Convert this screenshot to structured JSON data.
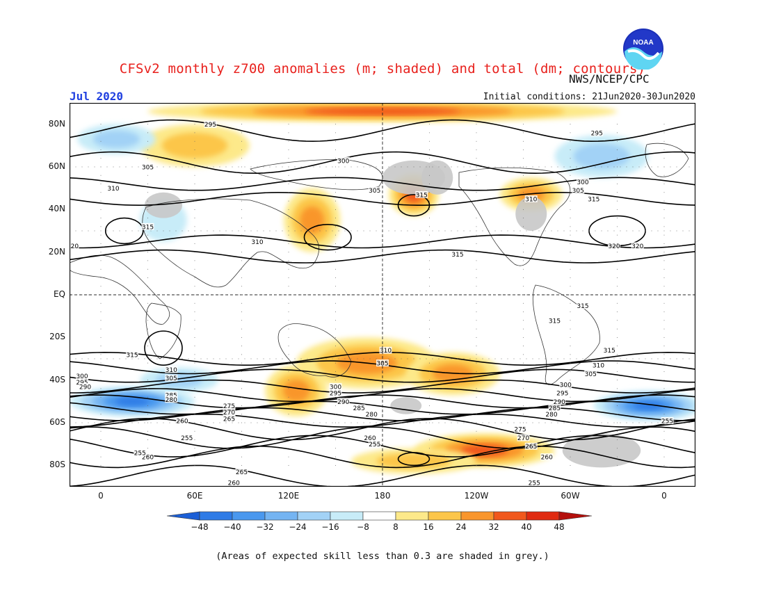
{
  "title": "CFSv2 monthly z700 anomalies (m; shaded) and total (dm; contours)",
  "agency": "NWS/NCEP/CPC",
  "logo": {
    "icon": "noaa-logo-icon",
    "text": "NOAA"
  },
  "valid_month": "Jul 2020",
  "initial_conditions": "Initial conditions: 21Jun2020-30Jun2020",
  "footer_note": "(Areas of expected skill less than 0.3 are shaded in grey.)",
  "map": {
    "lon_range": [
      -20,
      380
    ],
    "lat_range": [
      -90,
      90
    ],
    "lat_labels": [
      {
        "lat": 80,
        "text": "80N"
      },
      {
        "lat": 60,
        "text": "60N"
      },
      {
        "lat": 40,
        "text": "40N"
      },
      {
        "lat": 20,
        "text": "20N"
      },
      {
        "lat": 0,
        "text": "EQ"
      },
      {
        "lat": -20,
        "text": "20S"
      },
      {
        "lat": -40,
        "text": "40S"
      },
      {
        "lat": -60,
        "text": "60S"
      },
      {
        "lat": -80,
        "text": "80S"
      }
    ],
    "lon_labels": [
      {
        "lon": 0,
        "text": "0"
      },
      {
        "lon": 60,
        "text": "60E"
      },
      {
        "lon": 120,
        "text": "120E"
      },
      {
        "lon": 180,
        "text": "180"
      },
      {
        "lon": 240,
        "text": "120W"
      },
      {
        "lon": 300,
        "text": "60W"
      },
      {
        "lon": 360,
        "text": "0"
      }
    ],
    "reference_lines": {
      "equator_lat": 0,
      "dateline_lon": 180
    },
    "anomaly_regions": [
      {
        "lon": 180,
        "lat": 86,
        "rx": 150,
        "ry": 5,
        "value": 28
      },
      {
        "lon": 60,
        "lat": 70,
        "rx": 35,
        "ry": 10,
        "value": 16
      },
      {
        "lon": 135,
        "lat": 35,
        "rx": 18,
        "ry": 15,
        "value": 20
      },
      {
        "lon": 200,
        "lat": 47,
        "rx": 16,
        "ry": 10,
        "value": 28
      },
      {
        "lon": 275,
        "lat": 47,
        "rx": 20,
        "ry": 8,
        "value": 24
      },
      {
        "lon": 170,
        "lat": -32,
        "rx": 45,
        "ry": 12,
        "value": 20
      },
      {
        "lon": 125,
        "lat": -45,
        "rx": 20,
        "ry": 12,
        "value": 24
      },
      {
        "lon": 225,
        "lat": -37,
        "rx": 30,
        "ry": 10,
        "value": 20
      },
      {
        "lon": 245,
        "lat": -73,
        "rx": 45,
        "ry": 8,
        "value": 32
      },
      {
        "lon": 200,
        "lat": -78,
        "rx": 40,
        "ry": 6,
        "value": 16
      },
      {
        "lon": 20,
        "lat": -50,
        "rx": 40,
        "ry": 7,
        "value": -40
      },
      {
        "lon": 350,
        "lat": -52,
        "rx": 35,
        "ry": 7,
        "value": -40
      },
      {
        "lon": 50,
        "lat": -40,
        "rx": 25,
        "ry": 6,
        "value": -16
      },
      {
        "lon": 10,
        "lat": 73,
        "rx": 25,
        "ry": 7,
        "value": -16
      },
      {
        "lon": 320,
        "lat": 65,
        "rx": 30,
        "ry": 10,
        "value": -16
      },
      {
        "lon": 40,
        "lat": 35,
        "rx": 15,
        "ry": 10,
        "value": -8
      }
    ],
    "low_skill_regions": [
      {
        "lon": 320,
        "lat": -73,
        "rx": 25,
        "ry": 8
      },
      {
        "lon": 200,
        "lat": 55,
        "rx": 20,
        "ry": 8
      },
      {
        "lon": 215,
        "lat": 55,
        "rx": 10,
        "ry": 8
      },
      {
        "lon": 275,
        "lat": 38,
        "rx": 10,
        "ry": 8
      },
      {
        "lon": 40,
        "lat": 42,
        "rx": 12,
        "ry": 6
      },
      {
        "lon": 195,
        "lat": -52,
        "rx": 10,
        "ry": 4
      }
    ],
    "contour_labels": [
      {
        "lon": 70,
        "lat": 80,
        "text": "295"
      },
      {
        "lon": 317,
        "lat": 76,
        "text": "295"
      },
      {
        "lon": 155,
        "lat": 63,
        "text": "300"
      },
      {
        "lon": 308,
        "lat": 53,
        "text": "300"
      },
      {
        "lon": 30,
        "lat": 60,
        "text": "305"
      },
      {
        "lon": 175,
        "lat": 49,
        "text": "305"
      },
      {
        "lon": 305,
        "lat": 49,
        "text": "305"
      },
      {
        "lon": 8,
        "lat": 50,
        "text": "310"
      },
      {
        "lon": 275,
        "lat": 45,
        "text": "310"
      },
      {
        "lon": 205,
        "lat": 47,
        "text": "315"
      },
      {
        "lon": 315,
        "lat": 45,
        "text": "315"
      },
      {
        "lon": 30,
        "lat": 32,
        "text": "315"
      },
      {
        "lon": 100,
        "lat": 25,
        "text": "310"
      },
      {
        "lon": 228,
        "lat": 19,
        "text": "315"
      },
      {
        "lon": 328,
        "lat": 23,
        "text": "320"
      },
      {
        "lon": 343,
        "lat": 23,
        "text": "320"
      },
      {
        "lon": -18,
        "lat": 23,
        "text": "320"
      },
      {
        "lon": 308,
        "lat": -5,
        "text": "315"
      },
      {
        "lon": 290,
        "lat": -12,
        "text": "315"
      },
      {
        "lon": 325,
        "lat": -26,
        "text": "315"
      },
      {
        "lon": 20,
        "lat": -28,
        "text": "315"
      },
      {
        "lon": 45,
        "lat": -35,
        "text": "310"
      },
      {
        "lon": 45,
        "lat": -39,
        "text": "305"
      },
      {
        "lon": 182,
        "lat": -26,
        "text": "310"
      },
      {
        "lon": 180,
        "lat": -32,
        "text": "305"
      },
      {
        "lon": 318,
        "lat": -33,
        "text": "310"
      },
      {
        "lon": 313,
        "lat": -37,
        "text": "305"
      },
      {
        "lon": -12,
        "lat": -38,
        "text": "300"
      },
      {
        "lon": -12,
        "lat": -41,
        "text": "295"
      },
      {
        "lon": -10,
        "lat": -43,
        "text": "290"
      },
      {
        "lon": 150,
        "lat": -43,
        "text": "300"
      },
      {
        "lon": 150,
        "lat": -46,
        "text": "295"
      },
      {
        "lon": 155,
        "lat": -50,
        "text": "290"
      },
      {
        "lon": 165,
        "lat": -53,
        "text": "285"
      },
      {
        "lon": 173,
        "lat": -56,
        "text": "280"
      },
      {
        "lon": 297,
        "lat": -42,
        "text": "300"
      },
      {
        "lon": 295,
        "lat": -46,
        "text": "295"
      },
      {
        "lon": 293,
        "lat": -50,
        "text": "290"
      },
      {
        "lon": 290,
        "lat": -53,
        "text": "285"
      },
      {
        "lon": 288,
        "lat": -56,
        "text": "280"
      },
      {
        "lon": 45,
        "lat": -47,
        "text": "285"
      },
      {
        "lon": 45,
        "lat": -49,
        "text": "280"
      },
      {
        "lon": 82,
        "lat": -52,
        "text": "275"
      },
      {
        "lon": 82,
        "lat": -55,
        "text": "270"
      },
      {
        "lon": 82,
        "lat": -58,
        "text": "265"
      },
      {
        "lon": 52,
        "lat": -59,
        "text": "260"
      },
      {
        "lon": 268,
        "lat": -63,
        "text": "275"
      },
      {
        "lon": 270,
        "lat": -67,
        "text": "270"
      },
      {
        "lon": 275,
        "lat": -71,
        "text": "265"
      },
      {
        "lon": 285,
        "lat": -76,
        "text": "260"
      },
      {
        "lon": 55,
        "lat": -67,
        "text": "255"
      },
      {
        "lon": 172,
        "lat": -67,
        "text": "260"
      },
      {
        "lon": 175,
        "lat": -70,
        "text": "255"
      },
      {
        "lon": 30,
        "lat": -76,
        "text": "260"
      },
      {
        "lon": 25,
        "lat": -74,
        "text": "255"
      },
      {
        "lon": 90,
        "lat": -83,
        "text": "265"
      },
      {
        "lon": 85,
        "lat": -88,
        "text": "260"
      },
      {
        "lon": 277,
        "lat": -88,
        "text": "255"
      },
      {
        "lon": 362,
        "lat": -59,
        "text": "255"
      }
    ]
  },
  "colorbar": {
    "levels": [
      -48,
      -40,
      -32,
      -24,
      -16,
      -8,
      8,
      16,
      24,
      32,
      40,
      48
    ],
    "tick_labels": [
      "−48",
      "−40",
      "−32",
      "−24",
      "−16",
      "−8",
      "8",
      "16",
      "24",
      "32",
      "40",
      "48"
    ],
    "colors": [
      "#1c5fd6",
      "#2e7be6",
      "#4a98ee",
      "#74b4f2",
      "#a2d2f6",
      "#c8ecf8",
      "#ffffff",
      "#fde98a",
      "#fcc64a",
      "#f9962c",
      "#f1581c",
      "#e02a10",
      "#b4100c"
    ]
  }
}
